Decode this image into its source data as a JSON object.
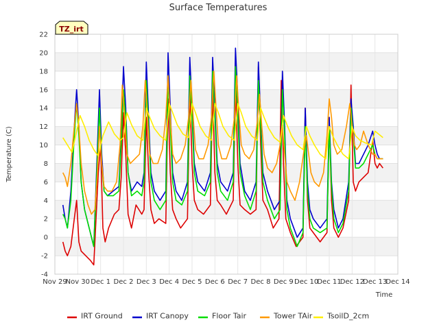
{
  "chart_data": {
    "type": "line",
    "title": "Surface Temperatures",
    "xlabel": "Time",
    "ylabel": "Temperature (C)",
    "site_label": "TZ_irt",
    "xlim": [
      0,
      15
    ],
    "ylim": [
      -4,
      22
    ],
    "y_ticks": [
      -4,
      -2,
      0,
      2,
      4,
      6,
      8,
      10,
      12,
      14,
      16,
      18,
      20,
      22
    ],
    "x_ticks": [
      {
        "x": 0,
        "label": "Nov 29"
      },
      {
        "x": 1,
        "label": "Nov 30"
      },
      {
        "x": 2,
        "label": "Dec 1"
      },
      {
        "x": 3,
        "label": "Dec 2"
      },
      {
        "x": 4,
        "label": "Dec 3"
      },
      {
        "x": 5,
        "label": "Dec 4"
      },
      {
        "x": 6,
        "label": "Dec 5"
      },
      {
        "x": 7,
        "label": "Dec 6"
      },
      {
        "x": 8,
        "label": "Dec 7"
      },
      {
        "x": 9,
        "label": "Dec 8"
      },
      {
        "x": 10,
        "label": "Dec 9"
      },
      {
        "x": 11,
        "label": "Dec 10"
      },
      {
        "x": 12,
        "label": "Dec 11"
      },
      {
        "x": 13,
        "label": "Dec 12"
      },
      {
        "x": 14,
        "label": "Dec 13"
      },
      {
        "x": 15,
        "label": "Dec 14"
      }
    ],
    "grid": true,
    "legend_position": "bottom",
    "series": [
      {
        "name": "IRT Ground",
        "color": "#dd0000",
        "x": [
          0.35,
          0.45,
          0.55,
          0.7,
          0.85,
          0.95,
          1.05,
          1.15,
          1.35,
          1.55,
          1.7,
          1.9,
          2.0,
          2.1,
          2.2,
          2.35,
          2.6,
          2.8,
          2.9,
          3.0,
          3.1,
          3.2,
          3.35,
          3.55,
          3.8,
          3.9,
          4.0,
          4.1,
          4.2,
          4.35,
          4.55,
          4.85,
          4.95,
          5.05,
          5.15,
          5.3,
          5.5,
          5.8,
          5.9,
          6.0,
          6.1,
          6.25,
          6.5,
          6.8,
          6.9,
          7.0,
          7.1,
          7.25,
          7.5,
          7.8,
          7.9,
          8.0,
          8.1,
          8.3,
          8.55,
          8.8,
          8.9,
          9.0,
          9.1,
          9.3,
          9.55,
          9.8,
          9.9,
          10.0,
          10.1,
          10.3,
          10.55,
          10.85,
          10.95,
          11.05,
          11.15,
          11.3,
          11.6,
          11.9,
          12.0,
          12.1,
          12.2,
          12.4,
          12.6,
          12.85,
          12.95,
          13.05,
          13.15,
          13.3,
          13.5,
          13.7,
          13.9,
          14.0,
          14.1,
          14.2,
          14.35
        ],
        "y": [
          -0.5,
          -1.5,
          -2.0,
          -1.0,
          2.0,
          4.0,
          -0.5,
          -1.5,
          -2.0,
          -2.5,
          -3.0,
          7.0,
          10.0,
          1.0,
          -0.5,
          1.0,
          2.5,
          3.0,
          6.5,
          13.5,
          9.0,
          2.5,
          1.0,
          3.5,
          2.5,
          3.0,
          13.0,
          7.0,
          3.0,
          1.5,
          2.0,
          1.5,
          15.0,
          7.0,
          3.0,
          2.0,
          1.0,
          2.0,
          16.0,
          8.0,
          4.0,
          3.0,
          2.5,
          3.5,
          16.0,
          7.0,
          4.0,
          3.5,
          2.5,
          4.0,
          16.5,
          8.0,
          3.5,
          3.0,
          2.5,
          3.0,
          18.5,
          10.0,
          4.0,
          3.0,
          1.0,
          2.0,
          17.0,
          8.0,
          2.0,
          0.5,
          -1.0,
          0.0,
          14.0,
          4.0,
          1.0,
          0.5,
          -0.5,
          0.5,
          13.0,
          4.0,
          1.0,
          0.0,
          1.0,
          4.0,
          16.5,
          6.0,
          5.0,
          6.0,
          6.5,
          7.0,
          10.5,
          8.0,
          7.5,
          8.0,
          7.5
        ]
      },
      {
        "name": "IRT Canopy",
        "color": "#0000cc",
        "x": [
          0.35,
          0.45,
          0.55,
          0.7,
          0.85,
          0.95,
          1.05,
          1.15,
          1.3,
          1.5,
          1.7,
          1.85,
          1.95,
          2.05,
          2.15,
          2.3,
          2.55,
          2.8,
          2.9,
          3.0,
          3.1,
          3.2,
          3.35,
          3.6,
          3.8,
          3.9,
          4.0,
          4.1,
          4.2,
          4.35,
          4.6,
          4.85,
          4.95,
          5.05,
          5.15,
          5.3,
          5.55,
          5.8,
          5.9,
          6.0,
          6.1,
          6.25,
          6.55,
          6.8,
          6.9,
          7.0,
          7.1,
          7.25,
          7.55,
          7.8,
          7.9,
          8.0,
          8.1,
          8.3,
          8.55,
          8.8,
          8.9,
          9.0,
          9.1,
          9.3,
          9.6,
          9.85,
          9.95,
          10.05,
          10.15,
          10.3,
          10.6,
          10.85,
          10.95,
          11.05,
          11.15,
          11.3,
          11.6,
          11.9,
          12.0,
          12.1,
          12.2,
          12.4,
          12.6,
          12.85,
          12.95,
          13.05,
          13.15,
          13.3,
          13.5,
          13.7,
          13.9,
          14.0,
          14.1,
          14.2,
          14.35
        ],
        "y": [
          3.5,
          2.0,
          1.0,
          5.0,
          12.0,
          16.0,
          12.0,
          6.0,
          3.0,
          1.0,
          -1.0,
          9.0,
          16.0,
          9.0,
          5.0,
          4.5,
          5.0,
          5.5,
          11.0,
          18.5,
          14.0,
          7.0,
          5.0,
          6.0,
          5.5,
          7.0,
          19.0,
          13.0,
          7.0,
          5.0,
          4.0,
          5.0,
          20.0,
          14.0,
          7.0,
          5.0,
          4.0,
          6.0,
          19.5,
          14.0,
          8.0,
          6.0,
          5.0,
          7.0,
          19.5,
          14.0,
          8.0,
          6.0,
          5.0,
          7.0,
          20.5,
          15.0,
          8.0,
          5.0,
          4.0,
          6.0,
          19.0,
          13.0,
          7.0,
          5.0,
          3.0,
          4.0,
          18.0,
          12.0,
          4.0,
          2.0,
          0.0,
          1.0,
          14.0,
          6.0,
          3.0,
          2.0,
          1.0,
          2.0,
          13.0,
          6.0,
          3.0,
          1.0,
          2.0,
          6.0,
          15.0,
          12.0,
          8.0,
          8.0,
          9.0,
          10.0,
          11.5,
          10.0,
          9.0,
          8.5,
          8.5
        ]
      },
      {
        "name": "Floor Tair",
        "color": "#00dd00",
        "x": [
          0.35,
          0.45,
          0.55,
          0.7,
          0.85,
          0.95,
          1.05,
          1.15,
          1.3,
          1.5,
          1.7,
          1.85,
          1.95,
          2.05,
          2.15,
          2.3,
          2.55,
          2.8,
          2.9,
          3.0,
          3.1,
          3.2,
          3.35,
          3.6,
          3.8,
          3.9,
          4.0,
          4.1,
          4.2,
          4.35,
          4.6,
          4.85,
          4.95,
          5.05,
          5.15,
          5.3,
          5.55,
          5.8,
          5.9,
          6.0,
          6.1,
          6.25,
          6.55,
          6.8,
          6.9,
          7.0,
          7.1,
          7.25,
          7.55,
          7.8,
          7.9,
          8.0,
          8.1,
          8.3,
          8.55,
          8.8,
          8.9,
          9.0,
          9.1,
          9.3,
          9.6,
          9.85,
          9.95,
          10.05,
          10.15,
          10.3,
          10.6,
          10.85,
          10.95,
          11.05,
          11.15,
          11.3,
          11.6,
          11.9,
          12.0,
          12.1,
          12.2,
          12.4,
          12.6,
          12.85,
          12.95,
          13.05,
          13.15,
          13.3,
          13.5,
          13.7,
          13.9,
          14.0,
          14.1,
          14.2,
          14.35
        ],
        "y": [
          2.5,
          2.0,
          1.0,
          4.0,
          11.0,
          14.5,
          11.0,
          6.0,
          3.0,
          1.0,
          -1.0,
          8.0,
          14.0,
          8.0,
          5.0,
          4.5,
          4.5,
          5.0,
          10.0,
          16.0,
          13.0,
          7.0,
          4.5,
          5.0,
          4.5,
          6.0,
          17.0,
          12.0,
          6.0,
          4.0,
          3.0,
          4.0,
          17.5,
          12.0,
          6.0,
          4.0,
          3.5,
          5.0,
          17.5,
          13.0,
          7.0,
          5.0,
          4.5,
          6.0,
          18.0,
          13.0,
          7.0,
          5.0,
          4.0,
          6.0,
          18.5,
          13.0,
          7.0,
          4.5,
          3.0,
          5.0,
          17.0,
          12.0,
          6.0,
          4.0,
          2.0,
          3.0,
          16.0,
          11.0,
          3.0,
          1.0,
          -1.0,
          0.5,
          12.0,
          5.0,
          2.0,
          1.0,
          0.5,
          1.0,
          12.0,
          5.5,
          2.0,
          0.5,
          1.5,
          5.0,
          14.0,
          11.0,
          7.5,
          7.5,
          8.0,
          9.0,
          10.0,
          9.0,
          8.5,
          8.5,
          8.5
        ]
      },
      {
        "name": "Tower TAir",
        "color": "#ff9900",
        "x": [
          0.35,
          0.45,
          0.55,
          0.7,
          0.85,
          0.95,
          1.05,
          1.15,
          1.3,
          1.45,
          1.6,
          1.75,
          1.85,
          1.95,
          2.05,
          2.15,
          2.3,
          2.5,
          2.7,
          2.85,
          2.95,
          3.05,
          3.15,
          3.3,
          3.5,
          3.7,
          3.85,
          3.95,
          4.05,
          4.15,
          4.3,
          4.5,
          4.7,
          4.85,
          4.95,
          5.05,
          5.15,
          5.3,
          5.5,
          5.7,
          5.85,
          5.95,
          6.05,
          6.15,
          6.3,
          6.5,
          6.7,
          6.85,
          6.95,
          7.05,
          7.15,
          7.3,
          7.5,
          7.7,
          7.85,
          7.95,
          8.05,
          8.15,
          8.3,
          8.5,
          8.7,
          8.85,
          8.95,
          9.05,
          9.15,
          9.3,
          9.5,
          9.7,
          9.85,
          9.95,
          10.05,
          10.15,
          10.3,
          10.5,
          10.7,
          10.9,
          11.0,
          11.1,
          11.2,
          11.35,
          11.55,
          11.75,
          11.9,
          12.0,
          12.1,
          12.2,
          12.35,
          12.55,
          12.75,
          12.9,
          13.0,
          13.1,
          13.2,
          13.35,
          13.5,
          13.7,
          13.9,
          14.0,
          14.1,
          14.2,
          14.35
        ],
        "y": [
          7.0,
          6.5,
          5.5,
          8.0,
          12.0,
          14.5,
          12.0,
          8.0,
          5.0,
          3.5,
          2.5,
          3.0,
          6.5,
          12.0,
          8.0,
          5.5,
          5.0,
          5.0,
          6.0,
          10.0,
          16.5,
          13.0,
          9.0,
          8.0,
          8.5,
          9.0,
          12.0,
          17.0,
          13.0,
          9.0,
          8.0,
          8.0,
          9.5,
          13.0,
          17.5,
          13.0,
          9.0,
          8.0,
          8.5,
          10.0,
          13.0,
          17.0,
          13.0,
          9.5,
          8.5,
          8.5,
          10.0,
          13.0,
          18.0,
          14.0,
          10.0,
          8.5,
          8.5,
          10.0,
          13.0,
          17.5,
          13.5,
          10.0,
          9.0,
          8.5,
          9.5,
          12.5,
          15.5,
          12.0,
          9.0,
          7.5,
          7.0,
          8.0,
          10.0,
          12.0,
          9.0,
          6.0,
          5.0,
          4.0,
          6.0,
          9.5,
          11.0,
          9.0,
          7.0,
          6.0,
          5.5,
          7.0,
          11.0,
          15.0,
          13.0,
          10.0,
          9.0,
          9.5,
          12.0,
          14.5,
          12.0,
          10.0,
          9.5,
          10.0,
          11.5,
          10.0,
          9.0,
          9.0,
          8.5,
          8.5,
          8.5
        ]
      },
      {
        "name": "TsoilD_2cm",
        "color": "#ffee00",
        "x": [
          0.35,
          0.55,
          0.75,
          0.95,
          1.1,
          1.3,
          1.5,
          1.7,
          1.9,
          2.1,
          2.35,
          2.6,
          2.85,
          3.0,
          3.15,
          3.35,
          3.6,
          3.85,
          4.0,
          4.15,
          4.35,
          4.6,
          4.85,
          5.0,
          5.15,
          5.35,
          5.6,
          5.85,
          6.0,
          6.15,
          6.35,
          6.6,
          6.85,
          7.0,
          7.15,
          7.35,
          7.6,
          7.85,
          8.0,
          8.15,
          8.35,
          8.6,
          8.85,
          9.0,
          9.15,
          9.35,
          9.6,
          9.85,
          10.0,
          10.15,
          10.35,
          10.6,
          10.85,
          11.0,
          11.15,
          11.35,
          11.6,
          11.85,
          12.0,
          12.15,
          12.35,
          12.6,
          12.85,
          13.0,
          13.15,
          13.35,
          13.6,
          13.85,
          14.0,
          14.15,
          14.35
        ],
        "y": [
          10.8,
          10.0,
          9.2,
          11.5,
          13.2,
          12.0,
          10.5,
          9.5,
          8.8,
          11.0,
          12.5,
          11.2,
          10.5,
          10.8,
          13.5,
          12.2,
          11.0,
          10.5,
          14.0,
          13.0,
          11.8,
          11.0,
          10.5,
          14.5,
          13.5,
          12.2,
          11.2,
          10.8,
          14.5,
          13.5,
          12.0,
          11.0,
          10.5,
          14.5,
          13.5,
          12.0,
          11.0,
          10.5,
          14.5,
          13.5,
          12.0,
          11.0,
          10.5,
          14.0,
          13.0,
          11.8,
          10.8,
          10.3,
          13.2,
          12.2,
          11.0,
          10.0,
          9.5,
          12.0,
          11.0,
          10.0,
          9.0,
          8.5,
          12.0,
          11.0,
          10.0,
          9.0,
          8.5,
          12.0,
          11.0,
          10.5,
          10.2,
          10.0,
          11.5,
          11.2,
          10.8
        ]
      }
    ]
  }
}
